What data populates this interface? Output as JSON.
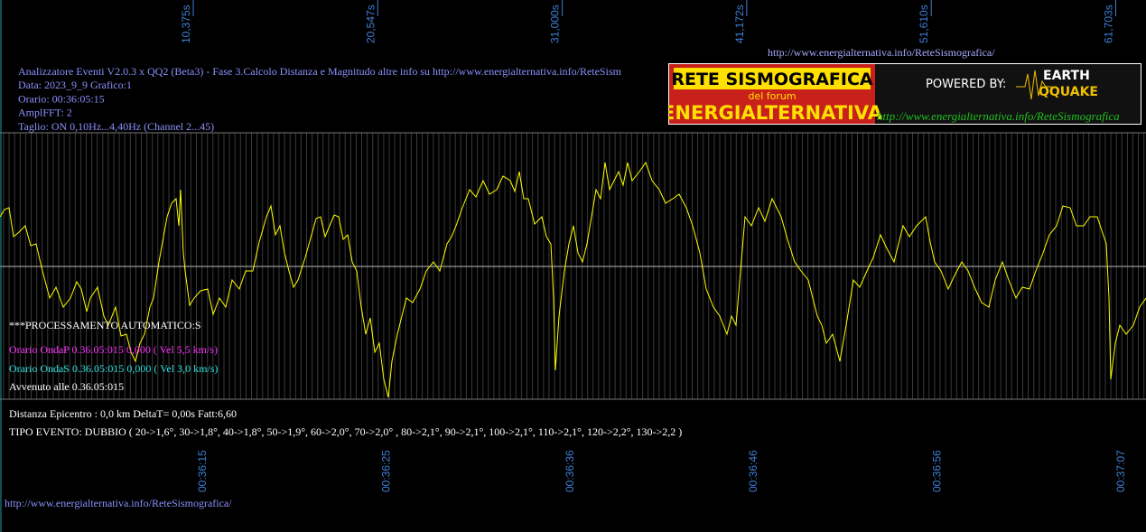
{
  "top_url": "http://www.energialternativa.info/ReteSismografica/",
  "info": [
    "Analizzatore Eventi V2.0.3 x QQ2 (Beta3) - Fase 3.Calcolo Distanza e Magnitudo altre info su http://www.energialternativa.info/ReteSism",
    "Data: 2023_9_9 Grafico:1",
    "Orario: 00:36:05:15",
    "AmplFFT: 2",
    "Taglio: ON 0,10Hz...4,40Hz       (Channel 2...45)"
  ],
  "logo": {
    "title": "RETE SISMOGRAFICA",
    "sub": "del forum",
    "name": "ENERGIALTERNATIVA",
    "powered": "POWERED BY:",
    "earth": "EARTH",
    "quake": "QQUAKE",
    "url": "http://www.energialternativa.info/ReteSismografica"
  },
  "top_axis": [
    "10,375s",
    "20,547s",
    "31,000s",
    "41,172s",
    "51,610s",
    "61,703s"
  ],
  "bottom_axis": [
    "00:36:15",
    "00:36:25",
    "00:36:36",
    "00:36:46",
    "00:36:56",
    "00:37:07"
  ],
  "processing": {
    "auto": "***PROCESSAMENTO AUTOMATICO:S",
    "onda_p": "Orario OndaP 0.36.05:015  0,000 ( Vel 5,5 km/s)",
    "onda_s": "Orario OndaS 0.36.05:015  0,000 ( Vel 3,0 km/s)",
    "avvenuto": "Avvenuto alle 0.36.05:015",
    "distanza": "Distanza Epicentro : 0,0 km DeltaT= 0,00s  Fatt:6,60",
    "tipo": "TIPO EVENTO: DUBBIO ( 20->1,6°, 30->1,8°, 40->1,8°, 50->1,9°, 60->2,0°, 70->2,0° , 80->2,1°, 90->2,1°, 100->2,1°, 110->2,1°, 120->2,2°, 130->2,2 )"
  },
  "bottom_url": "http://www.energialternativa.info/ReteSismografica/"
}
